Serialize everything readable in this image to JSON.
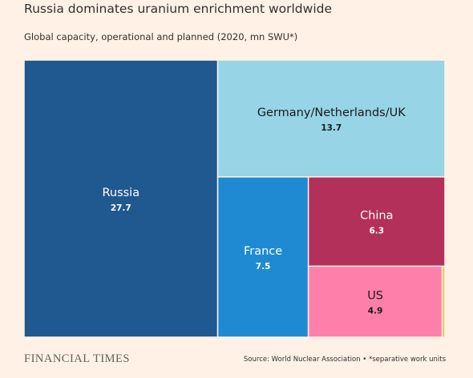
{
  "title": "Russia dominates uranium enrichment worldwide",
  "subtitle": "Global capacity, operational and planned (2020, mn SWU*)",
  "brand": "FINANCIAL TIMES",
  "source": "Source: World Nuclear Association • *separative work units",
  "chart_data": {
    "type": "treemap",
    "title": "Russia dominates uranium enrichment worldwide",
    "subtitle": "Global capacity, operational and planned (2020, mn SWU*)",
    "units": "mn SWU",
    "items": [
      {
        "label": "Russia",
        "value": 27.7,
        "display": "27.7",
        "color": "#205890"
      },
      {
        "label": "Germany/Netherlands/UK",
        "value": 13.7,
        "display": "13.7",
        "color": "#96d4e6"
      },
      {
        "label": "France",
        "value": 7.5,
        "display": "7.5",
        "color": "#1f8ad1"
      },
      {
        "label": "China",
        "value": 6.3,
        "display": "6.3",
        "color": "#b3305a"
      },
      {
        "label": "US",
        "value": 4.9,
        "display": "4.9",
        "color": "#ff7fab"
      },
      {
        "label": "",
        "value": 0.1,
        "display": "",
        "color": "#f2c14e"
      }
    ]
  }
}
